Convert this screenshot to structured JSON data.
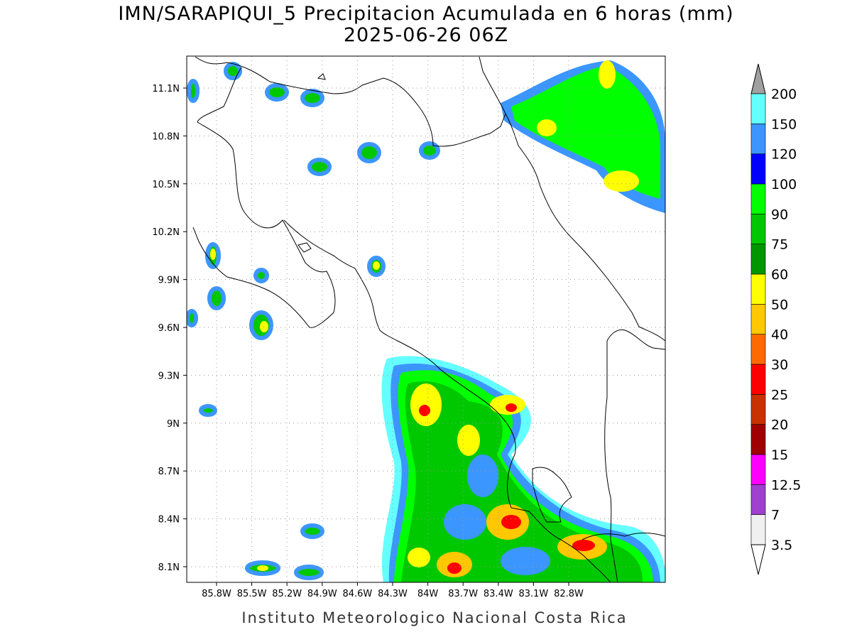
{
  "title": "IMN/SARAPIQUI_5 Precipitacion Acumulada en 6 horas (mm)",
  "subtitle": "2025-06-26 06Z",
  "map": {
    "lat_labels": [
      "11.1N",
      "10.8N",
      "10.5N",
      "10.2N",
      "9.9N",
      "9.6N",
      "9.3N",
      "9N",
      "8.7N",
      "8.4N",
      "8.1N"
    ],
    "lon_labels": [
      "85.8W",
      "85.5W",
      "85.2W",
      "84.9W",
      "84.6W",
      "84.3W",
      "84W",
      "83.7W",
      "83.4W",
      "83.1W",
      "82.8W"
    ]
  },
  "colorbar": {
    "labels": [
      "200",
      "150",
      "120",
      "100",
      "90",
      "75",
      "60",
      "50",
      "40",
      "30",
      "25",
      "20",
      "15",
      "12.5",
      "7",
      "3.5"
    ],
    "colors": [
      "#f0f0f0",
      "#a040d0",
      "#ff00ff",
      "#a00000",
      "#c83200",
      "#ff0000",
      "#ff6a00",
      "#ffc800",
      "#ffff00",
      "#009600",
      "#00c800",
      "#00ff00",
      "#0000ff",
      "#3c96ff",
      "#64ffff"
    ],
    "over_color": "#a0a0a0",
    "under_color": "#ffffff"
  },
  "footer": "Instituto Meteorologico Nacional Costa Rica"
}
